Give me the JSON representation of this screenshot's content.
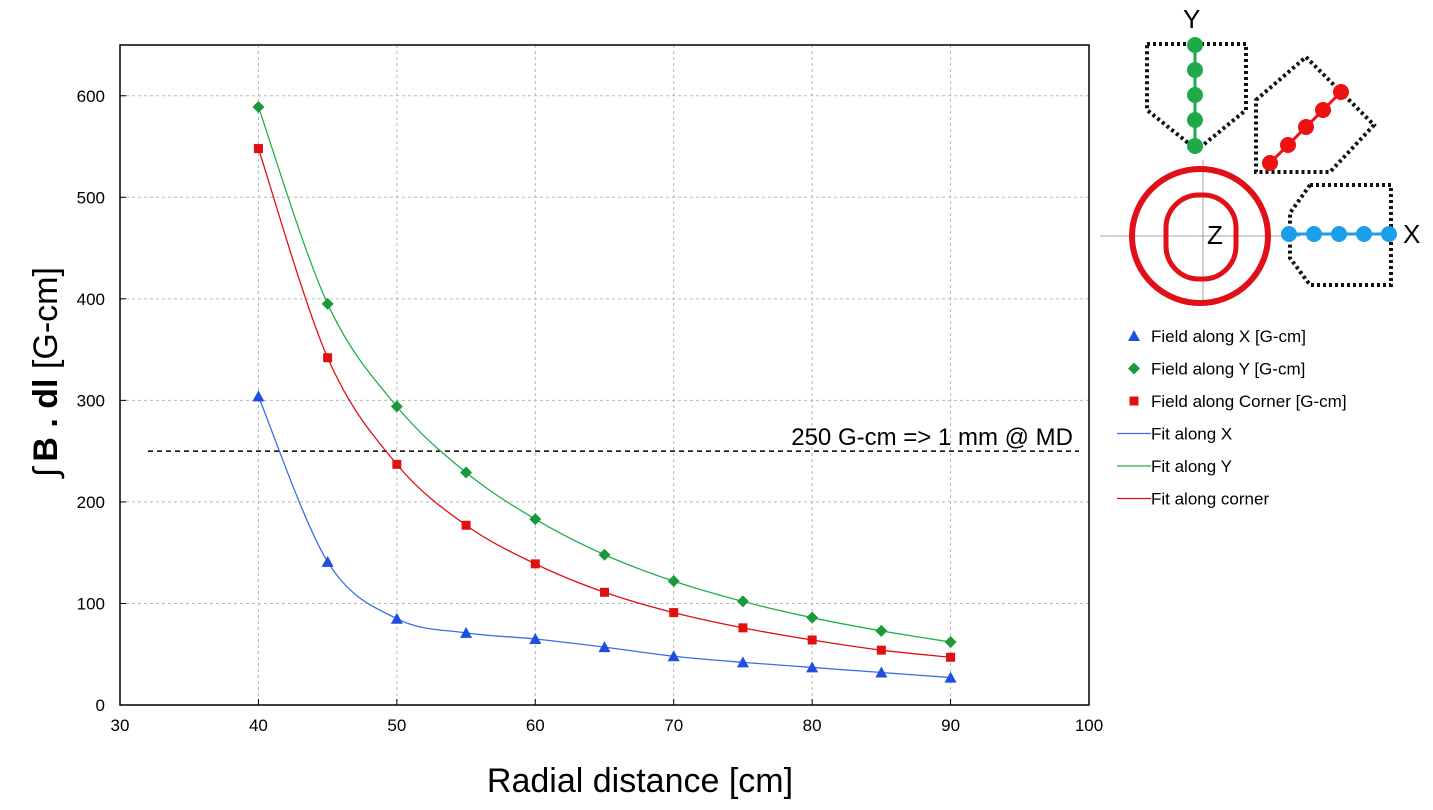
{
  "chart_data": {
    "type": "scatter",
    "xlabel": "Radial distance [cm]",
    "ylabel_prefix": "∫",
    "ylabel_bold": "B . dl",
    "ylabel_suffix": " [G-cm]",
    "xlim": [
      30,
      100
    ],
    "ylim": [
      0,
      650
    ],
    "xticks": [
      30,
      40,
      50,
      60,
      70,
      80,
      90,
      100
    ],
    "yticks": [
      0,
      100,
      200,
      300,
      400,
      500,
      600
    ],
    "grid": true,
    "legend_position": "right",
    "x": [
      40,
      45,
      50,
      55,
      60,
      65,
      70,
      75,
      80,
      85,
      90
    ],
    "series": [
      {
        "name": "Field along X [G-cm]",
        "marker": "triangle",
        "color": "#1f4fe0",
        "values": [
          304,
          141,
          85,
          71,
          65,
          57,
          48,
          42,
          37,
          32,
          27
        ]
      },
      {
        "name": "Field along Y [G-cm]",
        "marker": "diamond",
        "color": "#1a9a3a",
        "values": [
          589,
          395,
          294,
          229,
          183,
          148,
          122,
          102,
          86,
          73,
          62
        ]
      },
      {
        "name": "Field along Corner [G-cm]",
        "marker": "square",
        "color": "#e01010",
        "values": [
          548,
          342,
          237,
          177,
          139,
          111,
          91,
          76,
          64,
          54,
          47
        ]
      }
    ],
    "fits": [
      {
        "name": "Fit along X",
        "color": "#3a6ee8"
      },
      {
        "name": "Fit along Y",
        "color": "#22b04a"
      },
      {
        "name": "Fit along corner",
        "color": "#e01010"
      }
    ],
    "reference_line": {
      "y": 250,
      "label": "250 G-cm => 1 mm @ MD"
    }
  },
  "inset": {
    "labels": {
      "x": "X",
      "y": "Y",
      "z": "Z"
    },
    "colors": {
      "y_probe": "#1faa4a",
      "corner_probe": "#ee1111",
      "x_probe": "#1a9fe8",
      "coil": "#e01018"
    }
  }
}
